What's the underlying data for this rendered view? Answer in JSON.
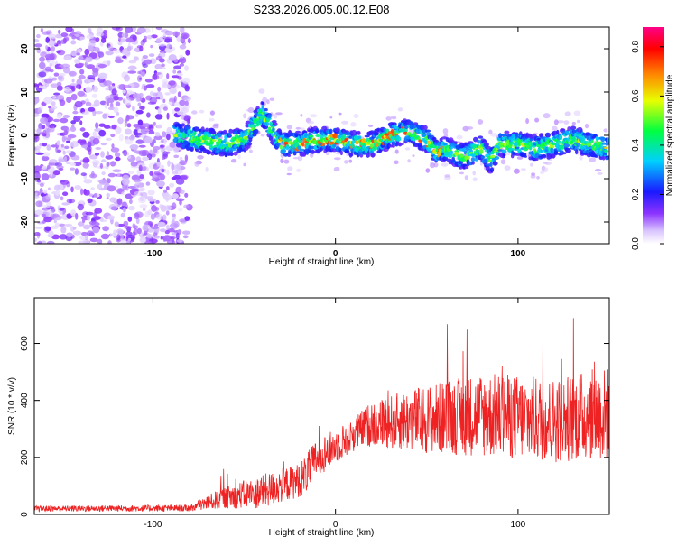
{
  "title": "S233.2026.005.00.12.E08",
  "chart_data": [
    {
      "type": "heatmap",
      "xlabel": "Height of straight line (km)",
      "ylabel": "Frequency (Hz)",
      "xlim": [
        -165,
        150
      ],
      "ylim": [
        -25,
        25
      ],
      "xticks": [
        -100,
        0,
        100
      ],
      "xtick_labels": [
        "-100",
        "0",
        "100"
      ],
      "yticks": [
        -20,
        -10,
        0,
        10,
        20
      ],
      "ytick_labels": [
        "-20",
        "-10",
        "0",
        "10",
        "20"
      ],
      "ridge": {
        "x": [
          -85,
          -75,
          -60,
          -50,
          -40,
          -30,
          -20,
          -10,
          0,
          10,
          20,
          30,
          40,
          50,
          55,
          60,
          70,
          80,
          85,
          90,
          100,
          110,
          120,
          130,
          140,
          150
        ],
        "y": [
          0,
          -1,
          -2,
          -1,
          5,
          -2,
          -2,
          -1,
          -1,
          -2,
          -2,
          0,
          1,
          -1,
          -4,
          -3,
          -5,
          -3,
          -6,
          -2,
          -2,
          -3,
          -2,
          -1,
          -2,
          -3
        ]
      },
      "colorbar": {
        "label": "Normalized spectral amplitude",
        "range": [
          0.0,
          0.88
        ],
        "ticks": [
          0.0,
          0.2,
          0.4,
          0.6,
          0.8
        ],
        "tick_labels": [
          "0.0",
          "0.2",
          "0.4",
          "0.6",
          "0.8"
        ]
      }
    },
    {
      "type": "line",
      "xlabel": "Height of straight line (km)",
      "ylabel": "SNR (10 * v/v)",
      "xlim": [
        -165,
        150
      ],
      "ylim": [
        0,
        760
      ],
      "xticks": [
        -100,
        0,
        100
      ],
      "xtick_labels": [
        "-100",
        "0",
        "100"
      ],
      "yticks": [
        0,
        200,
        400,
        600
      ],
      "ytick_labels": [
        "0",
        "200",
        "400",
        "600"
      ],
      "series": [
        {
          "name": "SNR",
          "color": "#ee2222",
          "envelope_x": [
            -165,
            -80,
            -60,
            -40,
            -20,
            -15,
            -10,
            0,
            10,
            20,
            40,
            60,
            80,
            100,
            120,
            140,
            150
          ],
          "envelope_mean": [
            20,
            22,
            60,
            80,
            120,
            150,
            200,
            240,
            280,
            320,
            330,
            340,
            350,
            340,
            330,
            350,
            350
          ],
          "envelope_spread": [
            10,
            12,
            40,
            60,
            60,
            70,
            70,
            60,
            60,
            80,
            110,
            130,
            150,
            150,
            150,
            160,
            170
          ]
        }
      ]
    }
  ]
}
